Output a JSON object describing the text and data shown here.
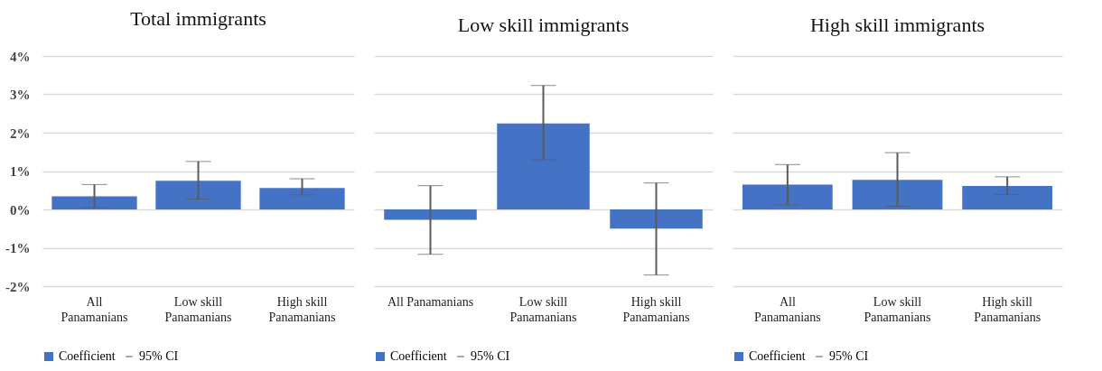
{
  "chart_data": [
    {
      "type": "bar",
      "title": "Total immigrants",
      "categories": [
        "All Panamanians",
        "Low skill Panamanians",
        "High skill Panamanians"
      ],
      "series": [
        {
          "name": "Coefficient",
          "color": "#4472c4",
          "values": [
            0.34,
            0.75,
            0.56
          ],
          "errors": [
            [
              0.05,
              0.65
            ],
            [
              0.27,
              1.25
            ],
            [
              0.38,
              0.8
            ]
          ]
        }
      ],
      "ylim": [
        -2,
        4
      ],
      "yticks": [
        {
          "value": -2,
          "label": "-2%"
        },
        {
          "value": -1,
          "label": "-1%"
        },
        {
          "value": 0,
          "label": "0%"
        },
        {
          "value": 1,
          "label": "1%"
        },
        {
          "value": 2,
          "label": "2%"
        },
        {
          "value": 3,
          "label": "3%"
        },
        {
          "value": 4,
          "label": "4%"
        }
      ],
      "grid": "y",
      "legend": "bottom",
      "annotations": [
        "95% CI"
      ]
    },
    {
      "type": "bar",
      "title": "Low skill immigrants",
      "categories": [
        "All Panamanians",
        "Low skill Panamanians",
        "High skill Panamanians"
      ],
      "series": [
        {
          "name": "Coefficient",
          "color": "#4472c4",
          "values": [
            -0.27,
            2.24,
            -0.5
          ],
          "errors": [
            [
              -1.17,
              0.62
            ],
            [
              1.29,
              3.23
            ],
            [
              -1.71,
              0.69
            ]
          ]
        }
      ],
      "ylim": [
        -2,
        4
      ],
      "yticks": [
        {
          "value": -2,
          "label": null
        },
        {
          "value": -1,
          "label": null
        },
        {
          "value": 0,
          "label": null
        },
        {
          "value": 1,
          "label": null
        },
        {
          "value": 2,
          "label": null
        },
        {
          "value": 3,
          "label": null
        },
        {
          "value": 4,
          "label": null
        }
      ],
      "grid": "y",
      "legend": "bottom",
      "tick_labels": "x",
      "annotations": [
        "95% CI"
      ]
    },
    {
      "type": "bar",
      "title": "High skill immigrants",
      "categories": [
        "All Panamanians",
        "Low skill Panamanians",
        "High skill Panamanians"
      ],
      "series": [
        {
          "name": "Coefficient",
          "color": "#4472c4",
          "values": [
            0.65,
            0.77,
            0.61
          ],
          "errors": [
            [
              0.12,
              1.17
            ],
            [
              0.08,
              1.48
            ],
            [
              0.39,
              0.85
            ]
          ]
        }
      ],
      "ylim": [
        -2,
        4
      ],
      "yticks": [
        {
          "value": -2,
          "label": null
        },
        {
          "value": -1,
          "label": null
        },
        {
          "value": 0,
          "label": null
        },
        {
          "value": 1,
          "label": null
        },
        {
          "value": 2,
          "label": null
        },
        {
          "value": 3,
          "label": null
        },
        {
          "value": 4,
          "label": null
        }
      ],
      "grid": "y",
      "legend": "bottom",
      "tick_labels": "x",
      "annotations": [
        "95% CI"
      ]
    }
  ]
}
